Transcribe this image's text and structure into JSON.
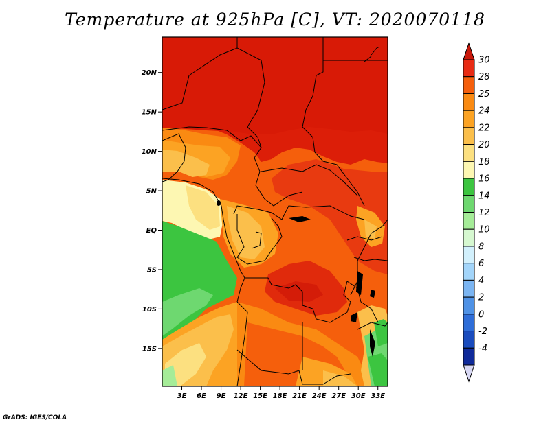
{
  "title": "Temperature at 925hPa [C], VT: 2020070118",
  "credit": "GrADS: IGES/COLA",
  "map": {
    "lon_range": [
      0,
      34.5
    ],
    "lat_range": [
      -19.8,
      24.5
    ],
    "lat_ticks": [
      {
        "value": 20,
        "label": "20N"
      },
      {
        "value": 15,
        "label": "15N"
      },
      {
        "value": 10,
        "label": "10N"
      },
      {
        "value": 5,
        "label": "5N"
      },
      {
        "value": 0,
        "label": "EQ"
      },
      {
        "value": -5,
        "label": "5S"
      },
      {
        "value": -10,
        "label": "10S"
      },
      {
        "value": -15,
        "label": "15S"
      }
    ],
    "lon_ticks": [
      {
        "value": 3,
        "label": "3E"
      },
      {
        "value": 6,
        "label": "6E"
      },
      {
        "value": 9,
        "label": "9E"
      },
      {
        "value": 12,
        "label": "12E"
      },
      {
        "value": 15,
        "label": "15E"
      },
      {
        "value": 18,
        "label": "18E"
      },
      {
        "value": 21,
        "label": "21E"
      },
      {
        "value": 24,
        "label": "24E"
      },
      {
        "value": 27,
        "label": "27E"
      },
      {
        "value": 30,
        "label": "30E"
      },
      {
        "value": 33,
        "label": "33E"
      }
    ]
  },
  "colorbar": {
    "top_label": "30",
    "levels": [
      {
        "label": "28",
        "color": "#e82b14"
      },
      {
        "label": "25",
        "color": "#f55f0c"
      },
      {
        "label": "24",
        "color": "#fa8a12"
      },
      {
        "label": "22",
        "color": "#fca323"
      },
      {
        "label": "20",
        "color": "#fbbf4b"
      },
      {
        "label": "18",
        "color": "#fce080"
      },
      {
        "label": "16",
        "color": "#fdf7b2"
      },
      {
        "label": "14",
        "color": "#3cc540"
      },
      {
        "label": "12",
        "color": "#6ed870"
      },
      {
        "label": "10",
        "color": "#a5ec98"
      },
      {
        "label": "8",
        "color": "#d6f8d0"
      },
      {
        "label": "6",
        "color": "#d2f0fc"
      },
      {
        "label": "4",
        "color": "#a3d5fa"
      },
      {
        "label": "2",
        "color": "#7bb5f2"
      },
      {
        "label": "0",
        "color": "#4f92e6"
      },
      {
        "label": "-2",
        "color": "#2e6dd8"
      },
      {
        "label": "-4",
        "color": "#1a4cbe"
      }
    ],
    "extra_segment_color": "#0f2a9a",
    "top_triangle_color": "#c9180b",
    "bottom_triangle_color": "#d8d8f4",
    "bottom_label": "-4"
  }
}
